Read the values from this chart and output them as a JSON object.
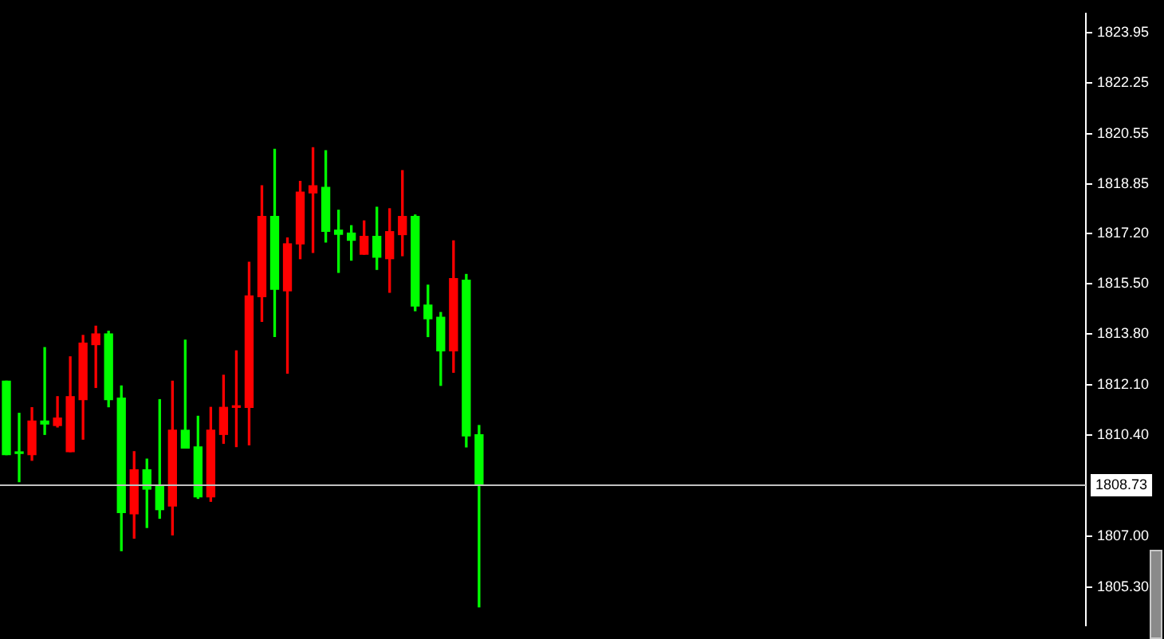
{
  "chart_data": {
    "type": "candlestick",
    "categories": [
      null,
      null,
      null,
      null,
      null,
      null,
      null,
      null,
      null,
      null,
      null,
      null,
      null,
      null,
      null,
      null,
      null,
      null,
      null,
      null,
      null,
      null,
      null,
      null,
      null,
      null,
      null,
      null,
      null,
      null,
      null,
      null,
      null,
      null,
      null,
      null,
      null,
      null,
      null,
      null,
      null,
      null,
      null,
      null,
      null,
      null,
      null,
      null,
      null,
      null,
      null,
      null,
      null,
      null,
      null,
      null,
      null,
      null,
      null,
      null,
      null,
      null,
      null,
      null,
      null,
      null,
      null,
      null,
      null,
      null,
      null,
      null,
      null,
      null,
      null,
      null,
      null,
      null,
      null,
      null,
      null,
      null,
      null,
      null,
      null
    ],
    "ohlc": [
      [
        1812.22,
        1812.22,
        1809.75,
        1809.75
      ],
      [
        1809.79,
        1811.14,
        1808.84,
        1809.79
      ],
      [
        1809.75,
        1811.33,
        1809.56,
        1810.88
      ],
      [
        1810.88,
        1813.35,
        1810.43,
        1810.78
      ],
      [
        1810.73,
        1811.7,
        1810.68,
        1810.98
      ],
      [
        1809.85,
        1813.04,
        1809.85,
        1811.7
      ],
      [
        1811.6,
        1813.76,
        1810.27,
        1813.5
      ],
      [
        1813.45,
        1814.07,
        1812.01,
        1813.81
      ],
      [
        1813.81,
        1813.9,
        1811.36,
        1811.6
      ],
      [
        1811.65,
        1812.06,
        1806.52,
        1807.8
      ],
      [
        1807.76,
        1809.85,
        1806.94,
        1809.24
      ],
      [
        1809.24,
        1809.6,
        1807.3,
        1808.59
      ],
      [
        1808.71,
        1811.6,
        1807.61,
        1807.9
      ],
      [
        1808.02,
        1812.22,
        1807.05,
        1810.57
      ],
      [
        1810.57,
        1813.6,
        1809.97,
        1809.97
      ],
      [
        1810.01,
        1811.04,
        1808.28,
        1808.33
      ],
      [
        1808.33,
        1811.34,
        1808.18,
        1810.57
      ],
      [
        1810.43,
        1812.42,
        1810.13,
        1811.34
      ],
      [
        1811.34,
        1813.24,
        1810.02,
        1811.34
      ],
      [
        1811.34,
        1816.22,
        1810.08,
        1815.09
      ],
      [
        1815.06,
        1818.79,
        1814.23,
        1817.76
      ],
      [
        1817.76,
        1820.02,
        1813.72,
        1815.31
      ],
      [
        1815.26,
        1817.04,
        1812.49,
        1816.84
      ],
      [
        1816.84,
        1818.94,
        1816.34,
        1818.58
      ],
      [
        1818.55,
        1820.07,
        1816.55,
        1818.79
      ],
      [
        1818.74,
        1819.97,
        1816.9,
        1817.26
      ],
      [
        1817.3,
        1817.97,
        1815.88,
        1817.16
      ],
      [
        1817.2,
        1817.45,
        1816.29,
        1816.96
      ],
      [
        1816.49,
        1817.61,
        1816.49,
        1817.09
      ],
      [
        1817.09,
        1818.07,
        1815.98,
        1816.39
      ],
      [
        1816.34,
        1818.02,
        1815.21,
        1817.25
      ],
      [
        1817.15,
        1819.3,
        1816.44,
        1817.76
      ],
      [
        1817.76,
        1817.81,
        1814.59,
        1814.75
      ],
      [
        1814.78,
        1815.45,
        1813.72,
        1814.32
      ],
      [
        1814.37,
        1814.53,
        1812.08,
        1813.24
      ],
      [
        1813.24,
        1816.94,
        1812.52,
        1815.67
      ],
      [
        1815.62,
        1815.81,
        1810.01,
        1810.38
      ],
      [
        1810.42,
        1810.73,
        1804.63,
        1808.73
      ],
      null,
      null,
      null,
      null,
      null,
      null,
      null,
      null,
      null,
      null,
      null,
      null,
      null,
      null,
      null,
      null,
      null,
      null,
      null,
      null,
      null,
      null,
      null,
      null,
      null,
      null,
      null,
      null,
      null,
      null,
      null,
      null,
      null,
      null,
      null,
      null,
      null,
      null,
      null,
      null,
      null,
      null,
      null,
      null,
      null,
      null,
      null
    ],
    "colors": [
      "#00ff00",
      "#00ff00",
      "#ff0000",
      "#00ff00",
      "#ff0000",
      "#ff0000",
      "#ff0000",
      "#ff0000",
      "#00ff00",
      "#00ff00",
      "#ff0000",
      "#00ff00",
      "#00ff00",
      "#ff0000",
      "#00ff00",
      "#00ff00",
      "#ff0000",
      "#ff0000",
      "#ff0000",
      "#ff0000",
      "#ff0000",
      "#00ff00",
      "#ff0000",
      "#ff0000",
      "#ff0000",
      "#00ff00",
      "#00ff00",
      "#00ff00",
      "#ff0000",
      "#00ff00",
      "#ff0000",
      "#ff0000",
      "#00ff00",
      "#00ff00",
      "#00ff00",
      "#ff0000",
      "#00ff00",
      "#00ff00",
      null,
      null,
      null,
      null,
      null,
      null,
      null,
      null,
      null,
      null,
      null,
      null,
      null,
      null,
      null,
      null,
      null,
      null,
      null,
      null,
      null,
      null,
      null,
      null,
      null,
      null,
      null,
      null,
      null,
      null,
      null,
      null,
      null,
      null,
      null,
      null,
      null,
      null,
      null,
      null,
      null,
      null,
      null,
      null,
      null,
      null,
      null
    ],
    "ylim": [
      1804.0,
      1824.59
    ],
    "yticks": [
      {
        "value": 1823.95,
        "label": "1823.95"
      },
      {
        "value": 1822.25,
        "label": "1822.25"
      },
      {
        "value": 1820.55,
        "label": "1820.55"
      },
      {
        "value": 1818.85,
        "label": "1818.85"
      },
      {
        "value": 1817.2,
        "label": "1817.20"
      },
      {
        "value": 1815.5,
        "label": "1815.50"
      },
      {
        "value": 1813.8,
        "label": "1813.80"
      },
      {
        "value": 1812.1,
        "label": "1812.10"
      },
      {
        "value": 1810.4,
        "label": "1810.40"
      },
      {
        "value": 1807.0,
        "label": "1807.00"
      },
      {
        "value": 1805.3,
        "label": "1805.30"
      }
    ],
    "tick_labels": "y",
    "grid": false,
    "ref_lines": [
      {
        "axis": "y",
        "value": 1808.73,
        "label": "1808.73",
        "color": "#c0c0c0"
      }
    ]
  }
}
